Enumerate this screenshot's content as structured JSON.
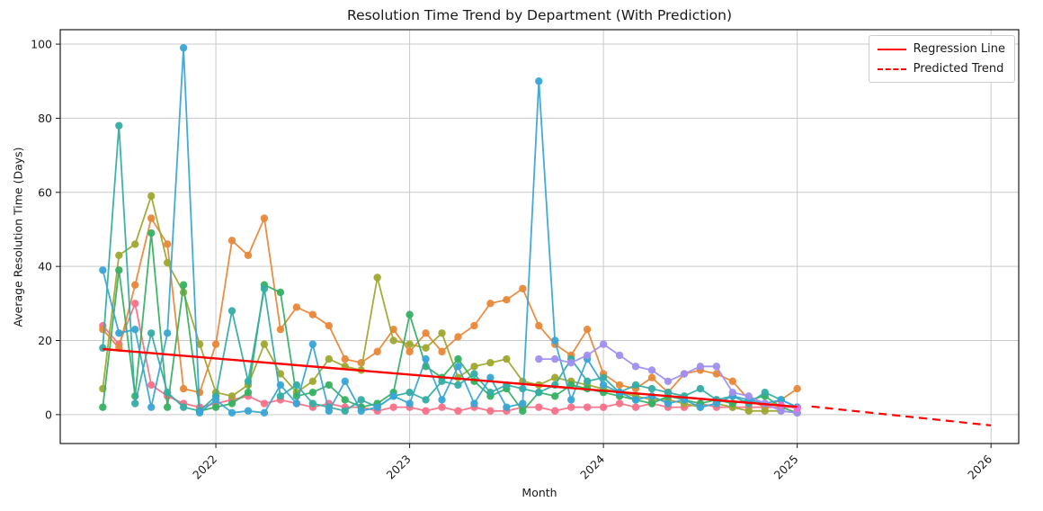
{
  "figure": {
    "title": "Resolution Time Trend by Department (With Prediction)",
    "xlabel": "Month",
    "ylabel": "Average Resolution Time (Days)"
  },
  "legend": {
    "items": [
      {
        "label": "Regression Line",
        "color": "#ff0000",
        "style": "solid"
      },
      {
        "label": "Predicted Trend",
        "color": "#ff0000",
        "style": "dashed"
      }
    ]
  },
  "chart_data": {
    "type": "line",
    "title": "Resolution Time Trend by Department (With Prediction)",
    "xlabel": "Month",
    "ylabel": "Average Resolution Time (Days)",
    "x_tick_labels": [
      "2022",
      "2023",
      "2024",
      "2025",
      "2026"
    ],
    "x_tick_years": [
      2022,
      2023,
      2024,
      2025,
      2026
    ],
    "y_ticks": [
      0,
      20,
      40,
      60,
      80,
      100
    ],
    "ylim": [
      -7.8,
      103.9
    ],
    "xlim_years": [
      2021.197,
      2026.143
    ],
    "grid": true,
    "grid_color": "#c9c9c9",
    "legend_position": "upper right",
    "months": [
      "2021-06",
      "2021-07",
      "2021-08",
      "2021-09",
      "2021-10",
      "2021-11",
      "2021-12",
      "2022-01",
      "2022-02",
      "2022-03",
      "2022-04",
      "2022-05",
      "2022-06",
      "2022-07",
      "2022-08",
      "2022-09",
      "2022-10",
      "2022-11",
      "2022-12",
      "2023-01",
      "2023-02",
      "2023-03",
      "2023-04",
      "2023-05",
      "2023-06",
      "2023-07",
      "2023-08",
      "2023-09",
      "2023-10",
      "2023-11",
      "2023-12",
      "2024-01",
      "2024-02",
      "2024-03",
      "2024-04",
      "2024-05",
      "2024-06",
      "2024-07",
      "2024-08",
      "2024-09",
      "2024-10",
      "2024-11",
      "2024-12",
      "2025-01"
    ],
    "series": [
      {
        "name": "department-pink",
        "color": "#f77189",
        "values": [
          24,
          19,
          30,
          8,
          5,
          3,
          2,
          3,
          4,
          5,
          3,
          4,
          3,
          2,
          3,
          2,
          2,
          1,
          2,
          2,
          1,
          2,
          1,
          2,
          1,
          1,
          2,
          2,
          1,
          2,
          2,
          2,
          3,
          2,
          3,
          2,
          2,
          3,
          2,
          2,
          2,
          2,
          2,
          2
        ]
      },
      {
        "name": "department-orange",
        "color": "#e8883a",
        "values": [
          23,
          18,
          35,
          53,
          46,
          7,
          6,
          19,
          47,
          43,
          53,
          23,
          29,
          27,
          24,
          15,
          14,
          17,
          23,
          17,
          22,
          17,
          21,
          24,
          30,
          31,
          34,
          24,
          19,
          16,
          23,
          11,
          8,
          7,
          10,
          6,
          11,
          12,
          11,
          9,
          4,
          2,
          4,
          7
        ]
      },
      {
        "name": "department-olive",
        "color": "#9fa832",
        "values": [
          7,
          43,
          46,
          59,
          41,
          33,
          19,
          6,
          5,
          8,
          19,
          11,
          6,
          9,
          15,
          13,
          12,
          37,
          20,
          19,
          18,
          22,
          10,
          13,
          14,
          15,
          9,
          8,
          10,
          9,
          8,
          7,
          6,
          5,
          4,
          4,
          3,
          2,
          3,
          2,
          1,
          1,
          1,
          0.5
        ]
      },
      {
        "name": "department-green",
        "color": "#36b163",
        "values": [
          2,
          39,
          5,
          49,
          2,
          35,
          1,
          2,
          3,
          6,
          35,
          33,
          5,
          6,
          8,
          4,
          2,
          3,
          6,
          27,
          13,
          10,
          15,
          9,
          5,
          7,
          1,
          6,
          5,
          8,
          7,
          6,
          5,
          4,
          3,
          5,
          4,
          3,
          4,
          3,
          4,
          5,
          2,
          0.5
        ]
      },
      {
        "name": "department-teal",
        "color": "#36ada4",
        "values": [
          18,
          78,
          3,
          22,
          6,
          2,
          1,
          5,
          28,
          9,
          34,
          5,
          8,
          3,
          2,
          1,
          4,
          2,
          5,
          6,
          4,
          9,
          8,
          11,
          6,
          8,
          7,
          6,
          8,
          15,
          9,
          10,
          6,
          8,
          7,
          6,
          5,
          7,
          4,
          5,
          3,
          6,
          4,
          2
        ]
      },
      {
        "name": "department-skyblue",
        "color": "#3aa5d5",
        "values": [
          39,
          22,
          23,
          2,
          22,
          99,
          0.5,
          4,
          0.5,
          1,
          0.5,
          8,
          3,
          19,
          1,
          9,
          1,
          2,
          5,
          3,
          15,
          4,
          13,
          3,
          10,
          2,
          3,
          90,
          20,
          4,
          15,
          8,
          6,
          4,
          5,
          3,
          4,
          2,
          3,
          5,
          4,
          3,
          4,
          2
        ]
      },
      {
        "name": "department-periwinkle",
        "color": "#a08ff0",
        "values": [
          null,
          null,
          null,
          null,
          null,
          null,
          null,
          null,
          null,
          null,
          null,
          null,
          null,
          null,
          null,
          null,
          null,
          null,
          null,
          null,
          null,
          null,
          null,
          null,
          null,
          null,
          null,
          15,
          15,
          14,
          16,
          19,
          16,
          13,
          12,
          9,
          11,
          13,
          13,
          6,
          5,
          3,
          1,
          0.5
        ]
      },
      {
        "name": "department-magenta",
        "color": "#ef6cd8",
        "values": [
          null,
          null,
          null,
          null,
          null,
          null,
          null,
          null,
          null,
          null,
          null,
          null,
          null,
          null,
          null,
          null,
          null,
          null,
          null,
          null,
          null,
          null,
          null,
          null,
          null,
          null,
          null,
          null,
          null,
          null,
          null,
          null,
          null,
          null,
          null,
          null,
          null,
          null,
          null,
          null,
          null,
          null,
          2.5,
          1.7
        ]
      }
    ],
    "regression_line": {
      "label": "Regression Line",
      "color": "#ff0000",
      "style": "solid",
      "points": [
        {
          "month": "2021-06",
          "value": 17.7
        },
        {
          "month": "2025-01",
          "value": 2.1
        }
      ]
    },
    "predicted_trend": {
      "label": "Predicted Trend",
      "color": "#ff0000",
      "style": "dashed",
      "points": [
        {
          "month": "2025-01",
          "value": 2.1
        },
        {
          "month": "2026-01",
          "value": -2.9
        }
      ]
    }
  }
}
